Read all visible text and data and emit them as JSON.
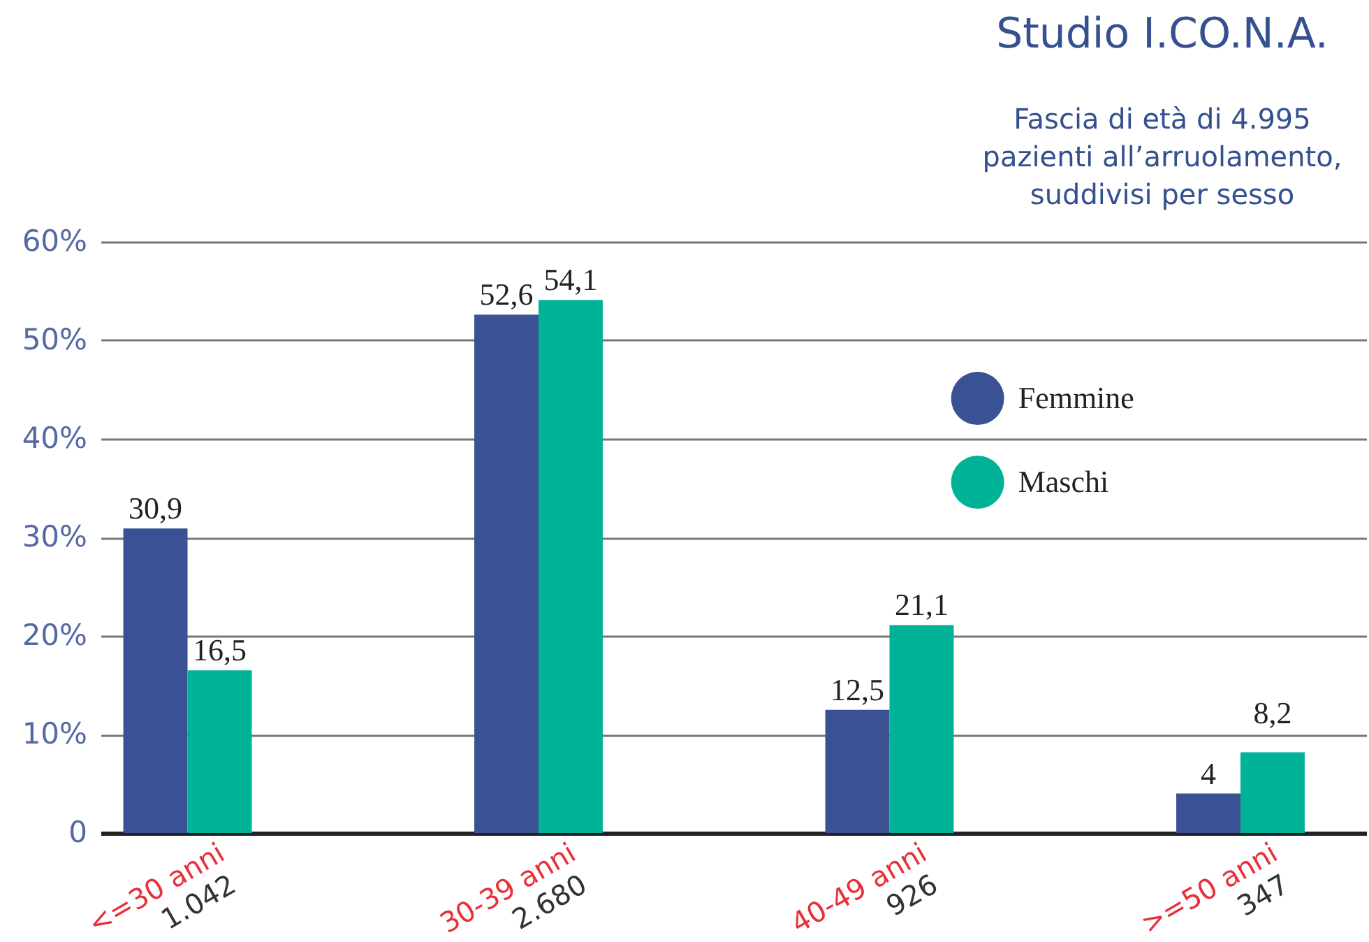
{
  "chart_data": {
    "type": "bar",
    "title": "Studio I.CO.N.A.",
    "subtitle": "Fascia di età di 4.995 pazienti all’arruolamento, suddivisi per sesso",
    "categories": [
      "<=30 anni",
      "30-39 anni",
      "40-49 anni",
      ">=50 anni"
    ],
    "series": [
      {
        "name": "Femmine",
        "color": "#3a5293",
        "values": [
          30.9,
          52.6,
          12.5,
          4
        ],
        "value_labels": [
          "30,9",
          "52,6",
          "12,5",
          "4"
        ]
      },
      {
        "name": "Maschi",
        "color": "#00b398",
        "values": [
          16.5,
          54.1,
          21.1,
          8.2
        ],
        "value_labels": [
          "16,5",
          "54,1",
          "21,1",
          "8,2"
        ]
      }
    ],
    "annotations": [
      "1.042",
      "2.680",
      "926",
      "347"
    ],
    "ylim": [
      0,
      60
    ],
    "yticks": [
      0,
      {
        "value": 10,
        "label": "10%"
      },
      {
        "value": 20,
        "label": "20%"
      },
      {
        "value": 30,
        "label": "30%"
      },
      {
        "value": 40,
        "label": "40%"
      },
      {
        "value": 50,
        "label": "50%"
      },
      {
        "value": 60,
        "label": "60%"
      }
    ],
    "grid": "y",
    "legend": "top right"
  }
}
